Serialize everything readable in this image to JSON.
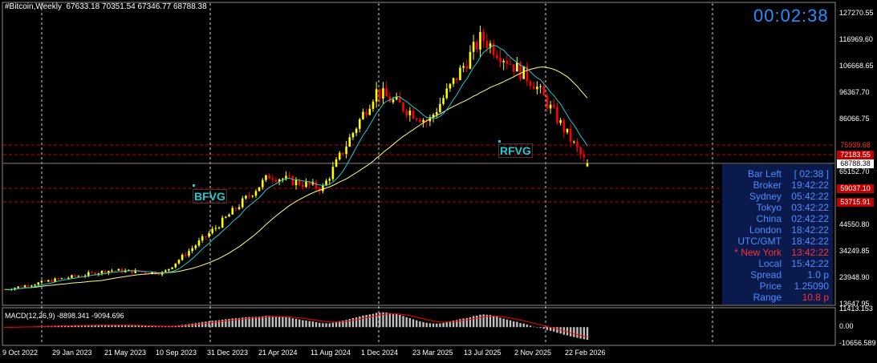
{
  "header": {
    "symbol_text": "#Bitcoin,Weekly  67633.18 70351.54 67346.77 68788.38",
    "countdown": "00:02:38"
  },
  "fvg_labels": [
    "BFVG",
    "RFVG"
  ],
  "info_panel": {
    "rows": [
      {
        "label": "Bar Left",
        "value": "[ 02:38 ]",
        "color": "#4f8cff"
      },
      {
        "label": "Broker",
        "value": "19:42:22",
        "color": "#4f8cff"
      },
      {
        "label": "Sydney",
        "value": "05:42:22",
        "color": "#4f8cff"
      },
      {
        "label": "Tokyo",
        "value": "03:42:22",
        "color": "#4f8cff"
      },
      {
        "label": "China",
        "value": "02:42:22",
        "color": "#4f8cff"
      },
      {
        "label": "London",
        "value": "18:42:22",
        "color": "#4f8cff"
      },
      {
        "label": "UTC/GMT",
        "value": "18:42:22",
        "color": "#4f8cff"
      },
      {
        "label": "* New York",
        "value": "13:42:22",
        "color": "#ff3030"
      },
      {
        "label": "Local",
        "value": "15:42:22",
        "color": "#4f8cff"
      },
      {
        "label": "Spread",
        "value": "1.0 p",
        "color": "#4f8cff"
      },
      {
        "label": "Price",
        "value": "1.25090",
        "color": "#4f8cff"
      },
      {
        "label": "Range",
        "value": "10.8 p",
        "color": "#4f8cff",
        "value_color": "#ff3030"
      }
    ]
  },
  "price_axis": {
    "ticks": [
      "127270.55",
      "116969.60",
      "106668.65",
      "96367.70",
      "86066.75",
      "65152.70",
      "44550.80",
      "34249.85",
      "23948.90",
      "13647.95"
    ],
    "tags": [
      {
        "text": "75939.68",
        "bg": "#000000",
        "fg": "#ff3030"
      },
      {
        "text": "72183.55",
        "bg": "#c00000",
        "fg": "#ffffff"
      },
      {
        "text": "68788.38",
        "bg": "#ffffff",
        "fg": "#000000"
      },
      {
        "text": "59037.10",
        "bg": "#c00000",
        "fg": "#ffffff"
      },
      {
        "text": "53715.91",
        "bg": "#c00000",
        "fg": "#ffffff"
      }
    ]
  },
  "macd": {
    "label": "MACD(12,26,9) -8898.341 -9094.696",
    "ticks": [
      "11413.153",
      "0.00",
      "-10656.589"
    ]
  },
  "time_axis": [
    "9 Oct 2022",
    "29 Jan 2023",
    "21 May 2023",
    "10 Sep 2023",
    "31 Dec 2023",
    "21 Apr 2024",
    "11 Aug 2024",
    "1 Dec 2024",
    "23 Mar 2025",
    "13 Jul 2025",
    "2 Nov 2025",
    "22 Feb 2026"
  ],
  "colors": {
    "bull": "#ffff00",
    "bear": "#ff0000",
    "ma_fast": "#1fc9d1",
    "ma_slow": "#ffff80",
    "level_line": "#c00000",
    "macd_hist": "#c0c0c0",
    "macd_signal": "#ff0000"
  },
  "chart_data": {
    "type": "candlestick",
    "timeframe": "Weekly",
    "last_bar": {
      "open": 67633.18,
      "high": 70351.54,
      "low": 67346.77,
      "close": 68788.38
    },
    "key_closes": [
      {
        "date": "9 Oct 2022",
        "price": 19500
      },
      {
        "date": "29 Jan 2023",
        "price": 23500
      },
      {
        "date": "21 May 2023",
        "price": 27000
      },
      {
        "date": "10 Sep 2023",
        "price": 26000
      },
      {
        "date": "31 Dec 2023",
        "price": 44000
      },
      {
        "date": "21 Apr 2024",
        "price": 64000
      },
      {
        "date": "11 Aug 2024",
        "price": 59000
      },
      {
        "date": "1 Dec 2024",
        "price": 97000
      },
      {
        "date": "23 Mar 2025",
        "price": 85000
      },
      {
        "date": "13 Jul 2025",
        "price": 118000
      },
      {
        "date": "2 Nov 2025",
        "price": 100000
      },
      {
        "date": "22 Feb 2026",
        "price": 68000
      }
    ],
    "levels": [
      75939.68,
      72183.55,
      68788.38,
      59037.1,
      53715.91
    ],
    "ylim": [
      13647.95,
      127270.55
    ]
  }
}
